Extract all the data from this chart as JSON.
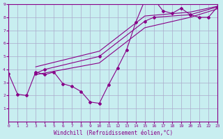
{
  "background_color": "#c8eef0",
  "grid_color": "#aaaacc",
  "line_color": "#880088",
  "xlabel": "Windchill (Refroidissement éolien,°C)",
  "xlim": [
    0,
    23
  ],
  "ylim": [
    0,
    9
  ],
  "xticks": [
    0,
    1,
    2,
    3,
    4,
    5,
    6,
    7,
    8,
    9,
    10,
    11,
    12,
    13,
    14,
    15,
    16,
    17,
    18,
    19,
    20,
    21,
    22,
    23
  ],
  "yticks": [
    1,
    2,
    3,
    4,
    5,
    6,
    7,
    8,
    9
  ],
  "series1_x": [
    0,
    1,
    2,
    3,
    4,
    5,
    6,
    7,
    8,
    9,
    10,
    11,
    12,
    13,
    14,
    15,
    16,
    17,
    18,
    19,
    20,
    21,
    22,
    23
  ],
  "series1_y": [
    3.7,
    2.1,
    2.0,
    3.8,
    3.6,
    3.8,
    2.9,
    2.7,
    2.3,
    1.5,
    1.4,
    2.8,
    4.1,
    5.5,
    7.6,
    9.3,
    9.4,
    8.5,
    8.3,
    8.7,
    8.2,
    8.0,
    8.0,
    8.8
  ],
  "series2_x": [
    3,
    4,
    10,
    15,
    16,
    20,
    23
  ],
  "series2_y": [
    3.7,
    4.0,
    5.0,
    7.7,
    8.0,
    8.2,
    8.8
  ],
  "series3_x": [
    3,
    10,
    15,
    20,
    23
  ],
  "series3_y": [
    4.2,
    5.4,
    8.1,
    8.4,
    8.85
  ],
  "series4_x": [
    3,
    10,
    15,
    20,
    23
  ],
  "series4_y": [
    3.6,
    4.5,
    7.2,
    8.0,
    8.65
  ]
}
